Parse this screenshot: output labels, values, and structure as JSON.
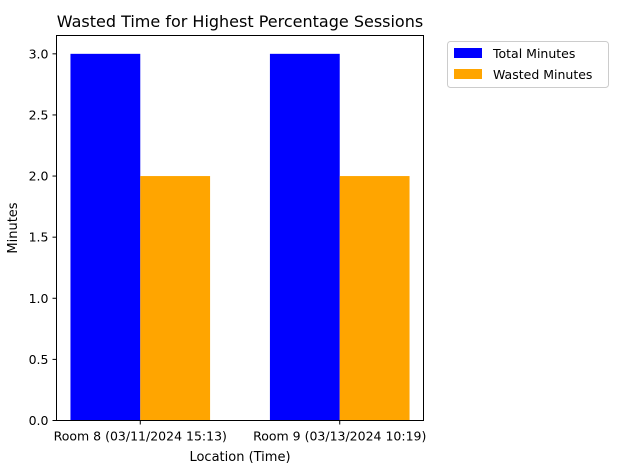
{
  "chart_data": {
    "type": "bar",
    "title": "Wasted Time for Highest Percentage Sessions",
    "xlabel": "Location (Time)",
    "ylabel": "Minutes",
    "categories": [
      "Room 8 (03/11/2024 15:13)",
      "Room 9 (03/13/2024 10:19)"
    ],
    "series": [
      {
        "name": "Total Minutes",
        "values": [
          3,
          3
        ],
        "color": "#0000ff"
      },
      {
        "name": "Wasted Minutes",
        "values": [
          2,
          2
        ],
        "color": "#ffa500"
      }
    ],
    "ylim": [
      0,
      3.15
    ],
    "yticks": [
      "0.0",
      "0.5",
      "1.0",
      "1.5",
      "2.0",
      "2.5",
      "3.0"
    ],
    "grid": false,
    "legend_position": "outside-top-right"
  }
}
